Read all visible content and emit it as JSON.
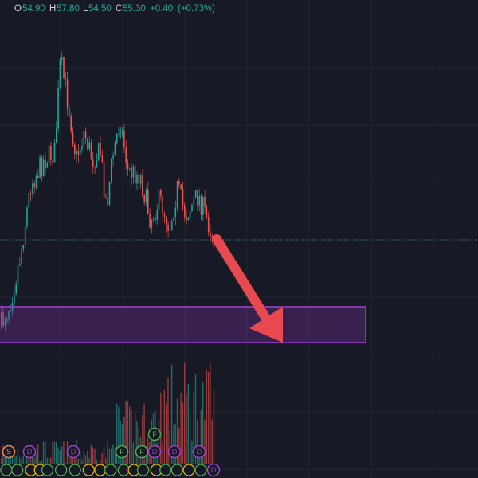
{
  "header": {
    "open_label": "O",
    "open": "54.90",
    "high_label": "H",
    "high": "57.80",
    "low_label": "L",
    "low": "54.50",
    "close_label": "C",
    "close": "55.30",
    "change": "+0.40",
    "change_pct": "(+0.73%)"
  },
  "markers": [
    "S",
    "D",
    "D",
    "F",
    "F",
    "F",
    "D",
    "D",
    "D",
    "D"
  ]
}
